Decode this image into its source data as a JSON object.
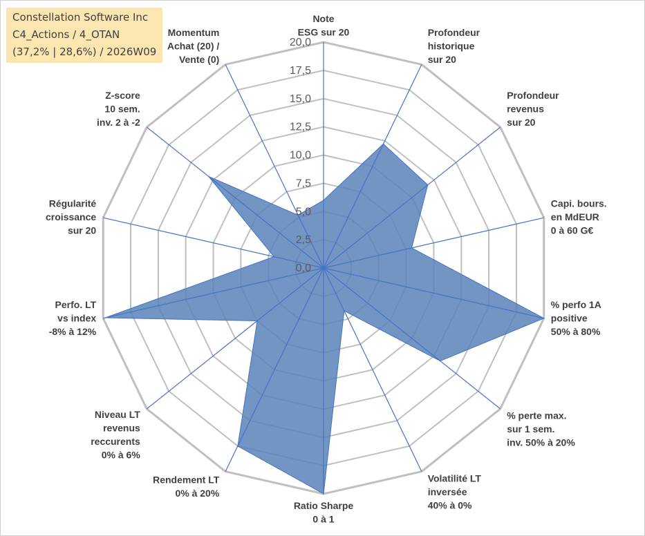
{
  "title_box": {
    "line1": "Constellation Software Inc",
    "line2": "C4_Actions / 4_OTAN",
    "line3": "(37,2% | 28,6%) / 2026W09"
  },
  "colors": {
    "fill": "#5b83b8",
    "stroke": "#4472c4",
    "grid": "#bfbfbf",
    "title_bg": "#fbe5b0"
  },
  "chart_data": {
    "type": "radar",
    "title": "Constellation Software Inc",
    "rlim": [
      0,
      20
    ],
    "tick_labels": [
      "0,0",
      "2,5",
      "5,0",
      "7,5",
      "10,0",
      "12,5",
      "15,0",
      "17,5",
      "20,0"
    ],
    "categories": [
      [
        "Note",
        "ESG sur 20"
      ],
      [
        "Profondeur",
        "historique",
        "sur 20"
      ],
      [
        "Profondeur",
        "revenus",
        "sur 20"
      ],
      [
        "Capi. bours.",
        "en MdEUR",
        "0 à 60 G€"
      ],
      [
        "% perfo 1A",
        "positive",
        "50% à 80%"
      ],
      [
        "% perte max.",
        "sur 1 sem.",
        "inv. 50% à 20%"
      ],
      [
        "Volatilité LT",
        "inversée",
        "40% à 0%"
      ],
      [
        "Ratio Sharpe",
        "0 à 1"
      ],
      [
        "Rendement LT",
        "0% à 20%"
      ],
      [
        "Niveau LT",
        "revenus",
        "reccurents",
        "0% à 6%"
      ],
      [
        "Perfo. LT",
        "vs index",
        "-8% à 12%"
      ],
      [
        "Régularité",
        "croissance",
        "sur 20"
      ],
      [
        "Z-score",
        "10 sem.",
        "inv. 2 à -2"
      ],
      [
        "Momentum",
        "Achat (20) /",
        "Vente (0)"
      ]
    ],
    "series": [
      {
        "name": "Constellation Software Inc",
        "values": [
          6.0,
          12.2,
          11.8,
          8.0,
          20.0,
          13.2,
          4.2,
          20.0,
          17.5,
          7.5,
          19.8,
          4.5,
          13.0,
          5.2
        ]
      }
    ]
  }
}
